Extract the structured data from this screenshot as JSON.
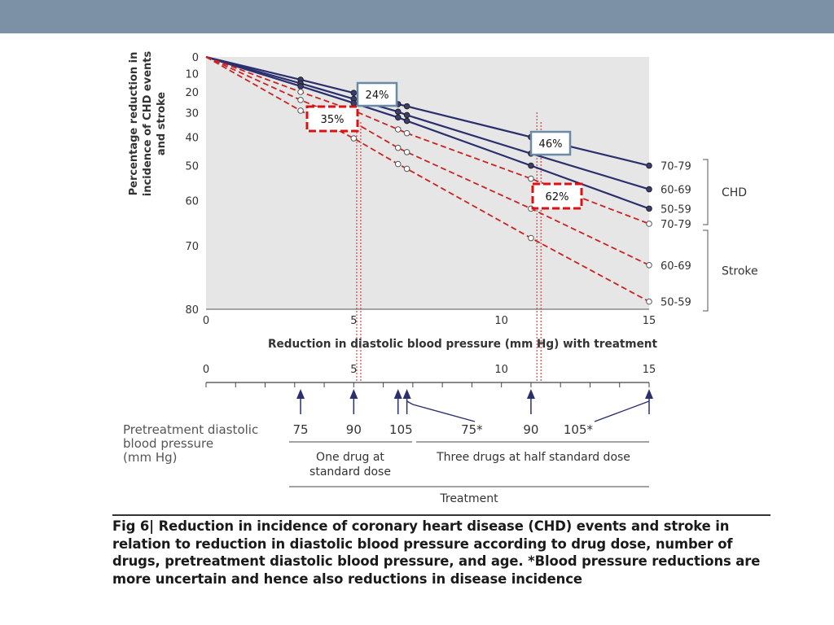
{
  "colors": {
    "header_band": "#7c91a6",
    "plot_background": "#e6e6e6",
    "chd_line": "#2b2f6e",
    "stroke_line": "#cc2222",
    "arrow": "#2b2f6e",
    "callout_chd_border": "#6b8aa6",
    "callout_stroke_border": "#dd1111"
  },
  "chart_data": {
    "type": "line",
    "title": "",
    "xlabel": "Reduction in diastolic blood pressure (mm Hg) with treatment",
    "ylabel_lines": [
      "Percentage reduction in",
      "incidence of CHD events",
      "and stroke"
    ],
    "xlim": [
      0,
      15
    ],
    "ylim": [
      0,
      80
    ],
    "y_scale": "log(1 - y/100)",
    "x_ticks": [
      "0",
      "5",
      "10",
      "15"
    ],
    "x_tick_values": [
      0,
      5,
      10,
      15
    ],
    "y_ticks": [
      "0",
      "10",
      "20",
      "30",
      "40",
      "50",
      "60",
      "70",
      "80"
    ],
    "y_tick_values": [
      0,
      10,
      20,
      30,
      40,
      50,
      60,
      70,
      80
    ],
    "grid": false,
    "marker_x": [
      3.2,
      5,
      6.5,
      6.8,
      11,
      15
    ],
    "series": [
      {
        "name": "70-79",
        "group": "CHD",
        "style": "solid",
        "x": [
          0,
          3.2,
          5,
          6.5,
          6.8,
          11,
          15
        ],
        "y": [
          0,
          13.5,
          20.5,
          26,
          27,
          40,
          50
        ]
      },
      {
        "name": "60-69",
        "group": "CHD",
        "style": "solid",
        "x": [
          0,
          3.2,
          5,
          6.5,
          6.8,
          11,
          15
        ],
        "y": [
          0,
          15.5,
          23.5,
          29.5,
          31,
          46,
          57
        ]
      },
      {
        "name": "50-59",
        "group": "CHD",
        "style": "solid",
        "x": [
          0,
          3.2,
          5,
          6.5,
          6.8,
          11,
          15
        ],
        "y": [
          0,
          17,
          25.5,
          32,
          33.5,
          50,
          62
        ]
      },
      {
        "name": "70-79",
        "group": "Stroke",
        "style": "dashed",
        "x": [
          0,
          3.2,
          5,
          6.5,
          6.8,
          11,
          15
        ],
        "y": [
          0,
          20,
          29,
          37,
          38.5,
          54,
          65.5
        ]
      },
      {
        "name": "60-69",
        "group": "Stroke",
        "style": "dashed",
        "x": [
          0,
          3.2,
          5,
          6.5,
          6.8,
          11,
          15
        ],
        "y": [
          0,
          24,
          34,
          44,
          45.5,
          62,
          73.5
        ]
      },
      {
        "name": "50-59",
        "group": "Stroke",
        "style": "dashed",
        "x": [
          0,
          3.2,
          5,
          6.5,
          6.8,
          11,
          15
        ],
        "y": [
          0,
          29,
          40.5,
          49.5,
          51,
          68.5,
          79
        ]
      }
    ],
    "groups": [
      {
        "label": "CHD",
        "series": [
          "70-79",
          "60-69",
          "50-59"
        ]
      },
      {
        "label": "Stroke",
        "series": [
          "70-79",
          "60-69",
          "50-59"
        ]
      }
    ],
    "callouts": [
      {
        "text": "24%",
        "kind": "chd",
        "x": 5,
        "y": 24
      },
      {
        "text": "35%",
        "kind": "stroke",
        "x": 5,
        "y": 35
      },
      {
        "text": "46%",
        "kind": "chd",
        "x": 11,
        "y": 46
      },
      {
        "text": "62%",
        "kind": "stroke",
        "x": 11,
        "y": 62
      }
    ],
    "guide_lines_x": [
      5.1,
      11.2
    ],
    "bottom_axis": {
      "ticks": [
        "0",
        "5",
        "10",
        "15"
      ],
      "tick_values": [
        0,
        5,
        10,
        15
      ],
      "arrows_x": [
        3.2,
        5,
        6.5,
        6.8,
        11,
        15
      ]
    }
  },
  "pretreatment": {
    "label_lines": [
      "Pretreatment diastolic",
      "blood pressure",
      "(mm Hg)"
    ],
    "values": [
      {
        "text": "75",
        "x": 3.2
      },
      {
        "text": "90",
        "x": 5
      },
      {
        "text": "105",
        "x": 6.6
      },
      {
        "text": "75*",
        "x": 9
      },
      {
        "text": "90",
        "x": 11
      },
      {
        "text": "105*",
        "x": 12.6
      }
    ],
    "group1_lines": [
      "One drug at",
      "standard dose"
    ],
    "group2_label": "Three drugs at half standard dose",
    "treatment_label": "Treatment"
  },
  "caption": {
    "fig_label": "Fig 6|",
    "text": " Reduction in incidence of coronary heart disease (CHD) events and stroke in relation to reduction in diastolic blood pressure according to drug dose, number of drugs, pretreatment diastolic blood pressure, and age. *Blood pressure reductions are more uncertain and hence also reductions in disease incidence"
  }
}
